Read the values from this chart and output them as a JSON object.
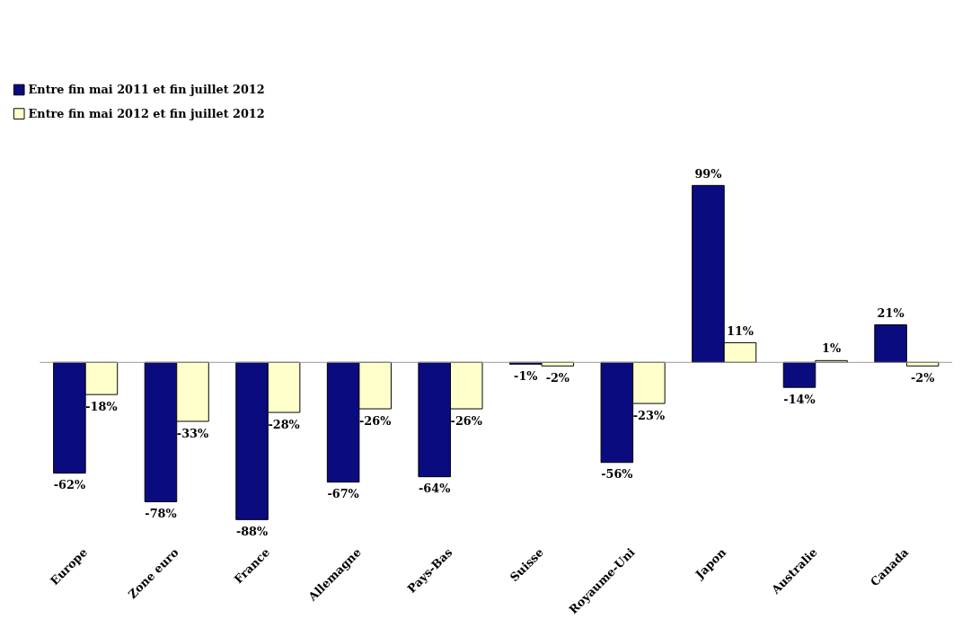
{
  "chart_data": {
    "type": "bar",
    "legend": "top left",
    "categories": [
      "Europe",
      "Zone euro",
      "France",
      "Allemagne",
      "Pays-Bas",
      "Suisse",
      "Royaume-Uni",
      "Japon",
      "Australie",
      "Canada"
    ],
    "series": [
      {
        "name": "Entre fin mai 2011 et fin juillet 2012",
        "color": "#0b0b80",
        "values": [
          -62,
          -78,
          -88,
          -67,
          -64,
          -1,
          -56,
          99,
          -14,
          21
        ],
        "value_labels": [
          "-62%",
          "-78%",
          "-88%",
          "-67%",
          "-64%",
          "-1%",
          "-56%",
          "99%",
          "-14%",
          "21%"
        ]
      },
      {
        "name": "Entre fin mai 2012 et fin juillet 2012",
        "color": "#ffffcc",
        "values": [
          -18,
          -33,
          -28,
          -26,
          -26,
          -2,
          -23,
          11,
          1,
          -2
        ],
        "value_labels": [
          "-18%",
          "-33%",
          "-28%",
          "-26%",
          "-26%",
          "-2%",
          "-23%",
          "11%",
          "1%",
          "-2%"
        ]
      }
    ]
  }
}
